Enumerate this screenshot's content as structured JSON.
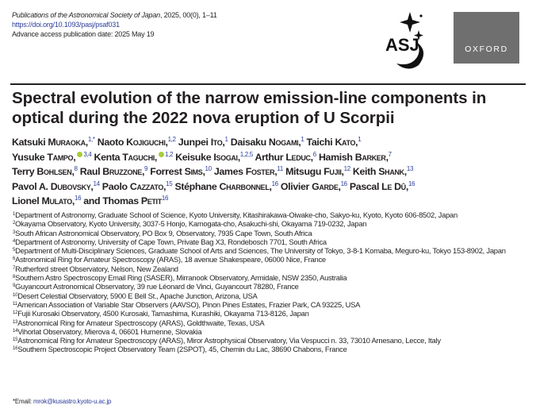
{
  "header": {
    "journal": "Publications of the Astronomical Society of Japan",
    "citation": ", 2025, 00(0), 1–11",
    "doi": "https://doi.org/10.1093/pasj/psaf031",
    "advance_access": "Advance access publication date: 2025 May 19"
  },
  "logos": {
    "asj": "ASJ",
    "asj_sub": "Astronomical Society of Japan",
    "oxford": "OXFORD",
    "oxford_color": "#6f6f6f"
  },
  "title": "Spectral evolution of the narrow emission-line components in optical during the 2022 nova eruption of U Scorpii",
  "authors": {
    "lines": [
      [
        {
          "given": "Katsuki",
          "surname": "Muraoka",
          "sup": "1,*"
        },
        {
          "given": "Naoto",
          "surname": "Kojiguchi",
          "sup": "1,2"
        },
        {
          "given": "Junpei",
          "surname": "Ito",
          "sup": "1"
        },
        {
          "given": "Daisaku",
          "surname": "Nogami",
          "sup": "1"
        },
        {
          "given": "Taichi",
          "surname": "Kato",
          "sup": "1"
        }
      ],
      [
        {
          "given": "Yusuke",
          "surname": "Tampo",
          "sup": "3,4",
          "orcid": true
        },
        {
          "given": "Kenta",
          "surname": "Taguchi",
          "sup": "1,2",
          "orcid": true
        },
        {
          "given": "Keisuke",
          "surname": "Isogai",
          "sup": "1,2,5"
        },
        {
          "given": "Arthur",
          "surname": "Leduc",
          "sup": "6"
        },
        {
          "given": "Hamish",
          "surname": "Barker",
          "sup": "7"
        }
      ],
      [
        {
          "given": "Terry",
          "surname": "Bohlsen",
          "sup": "8"
        },
        {
          "given": "Raul",
          "surname": "Bruzzone",
          "sup": "9"
        },
        {
          "given": "Forrest",
          "surname": "Sims",
          "sup": "10"
        },
        {
          "given": "James",
          "surname": "Foster",
          "sup": "11"
        },
        {
          "given": "Mitsugu",
          "surname": "Fujii",
          "sup": "12"
        },
        {
          "given": "Keith",
          "surname": "Shank",
          "sup": "13"
        }
      ],
      [
        {
          "given": "Pavol A.",
          "surname": "Dubovsky",
          "sup": "14"
        },
        {
          "given": "Paolo",
          "surname": "Cazzato",
          "sup": "15"
        },
        {
          "given": "Stéphane",
          "surname": "Charbonnel",
          "sup": "16"
        },
        {
          "given": "Olivier",
          "surname": "Garde",
          "sup": "16"
        },
        {
          "given": "Pascal",
          "surname": "Le Dû",
          "sup": "16"
        }
      ],
      [
        {
          "given": "Lionel",
          "surname": "Mulato",
          "sup": "16"
        },
        {
          "prefix": "and ",
          "given": "Thomas",
          "surname": "Petit",
          "sup": "16",
          "last": true
        }
      ]
    ],
    "sup_color": "#2b3d9b",
    "orcid_color": "#a6ce39"
  },
  "affiliations": [
    {
      "n": "1",
      "text": "Department of Astronomy, Graduate School of Science, Kyoto University, Kitashirakawa-Oiwake-cho, Sakyo-ku, Kyoto, Kyoto 606-8502, Japan"
    },
    {
      "n": "2",
      "text": "Okayama Observatory, Kyoto University, 3037-5 Honjo, Kamogata-cho, Asakuchi-shi, Okayama 719-0232, Japan"
    },
    {
      "n": "3",
      "text": "South African Astronomical Observatory, PO Box 9, Observatory, 7935 Cape Town, South Africa"
    },
    {
      "n": "4",
      "text": "Department of Astronomy, University of Cape Town, Private Bag X3, Rondebosch 7701, South Africa"
    },
    {
      "n": "5",
      "text": "Department of Multi-Disciplinary Sciences, Graduate School of Arts and Sciences, The University of Tokyo, 3-8-1 Komaba, Meguro-ku, Tokyo 153-8902, Japan"
    },
    {
      "n": "6",
      "text": "Astronomical Ring for Amateur Spectroscopy (ARAS), 18 avenue Shakespeare, 06000 Nice, France"
    },
    {
      "n": "7",
      "text": "Rutherford street Observatory, Nelson, New Zealand"
    },
    {
      "n": "8",
      "text": "Southern Astro Spectroscopy Email Ring (SASER), Mirranook Observatory, Armidale, NSW 2350, Australia"
    },
    {
      "n": "9",
      "text": "Guyancourt Astronomical Observatory, 39 rue Léonard de Vinci, Guyancourt 78280, France"
    },
    {
      "n": "10",
      "text": "Desert Celestial Observatory, 5900 E Bell St., Apache Junction, Arizona, USA"
    },
    {
      "n": "11",
      "text": "American Association of Variable Star Observers (AAVSO), Pinon Pines Estates, Frazier Park, CA 93225, USA"
    },
    {
      "n": "12",
      "text": "Fujii Kurosaki Observatory, 4500 Kurosaki, Tamashima, Kurashiki, Okayama 713-8126, Japan"
    },
    {
      "n": "13",
      "text": "Astronomical Ring for Amateur Spectroscopy (ARAS), Goldthwaite, Texas, USA"
    },
    {
      "n": "14",
      "text": "Vihorlat Observatory, Mierova 4, 06601 Humenne, Slovakia"
    },
    {
      "n": "15",
      "text": "Astronomical Ring for Amateur Spectroscopy (ARAS), Miror Astrophysical Observatory, Via Vespucci n. 33, 73010 Arnesano, Lecce, Italy"
    },
    {
      "n": "16",
      "text": "Southern Spectroscopic Project Observatory Team (2SPOT), 45, Chemin du Lac, 38690 Chabons, France"
    }
  ],
  "email": {
    "label": "*Email: ",
    "value": "mrok@kusastro.kyoto-u.ac.jp"
  }
}
